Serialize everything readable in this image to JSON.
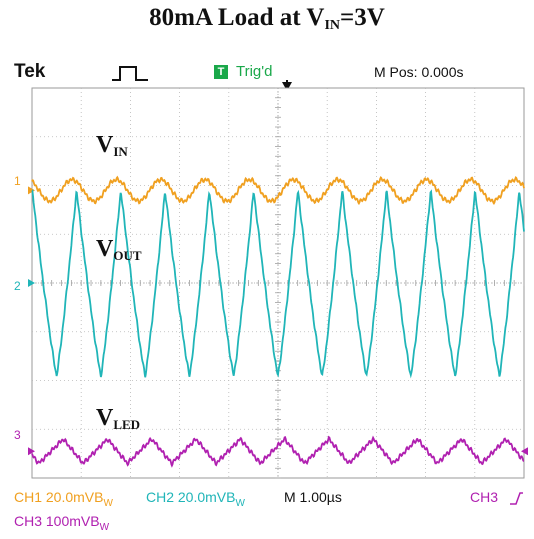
{
  "title": {
    "main": "80mA Load at V",
    "sub": "IN",
    "tail": "=3V"
  },
  "header": {
    "brand": "Tek",
    "trig_icon": "T",
    "trig_status": "Trig'd",
    "mpos": "M Pos: 0.000s"
  },
  "channel_markers": {
    "ch1": "1",
    "ch2": "2",
    "ch3": "3"
  },
  "traces": {
    "vin": {
      "main": "V",
      "sub": "IN"
    },
    "vout": {
      "main": "V",
      "sub": "OUT"
    },
    "vled": {
      "main": "V",
      "sub": "LED"
    }
  },
  "status": {
    "ch1": "CH1  20.0mVB",
    "ch1_sub": "W",
    "ch2": "CH2  20.0mVB",
    "ch2_sub": "W",
    "timebase": "M 1.00µs",
    "ch3_trigger": "CH3",
    "ch3": "CH3  100mVB",
    "ch3_sub": "W"
  },
  "colors": {
    "ch1": "#f0a020",
    "ch2": "#20b5b8",
    "ch3": "#b020b0",
    "trigger": "#1aa84a"
  },
  "chart_data": {
    "type": "line",
    "x": [
      0,
      0.05,
      0.1,
      0.15,
      0.2,
      0.25,
      0.3,
      0.35,
      0.4,
      0.45,
      0.5,
      0.55,
      0.6,
      0.65,
      0.7,
      0.75,
      0.8,
      0.85,
      0.9,
      0.95,
      1,
      1.05,
      1.1,
      1.15,
      1.2,
      1.25,
      1.3,
      1.35,
      1.4,
      1.45,
      1.5,
      1.55,
      1.6,
      1.65,
      1.7,
      1.75,
      1.8,
      1.85,
      1.9,
      1.95,
      2,
      2.05,
      2.1,
      2.15,
      2.2,
      2.25,
      2.3,
      2.35,
      2.4,
      2.45,
      2.5,
      2.55,
      2.6,
      2.65,
      2.7,
      2.75,
      2.8,
      2.85,
      2.9,
      2.95,
      3,
      3.05,
      3.1,
      3.15,
      3.2,
      3.25,
      3.3,
      3.35,
      3.4,
      3.45,
      3.5,
      3.55,
      3.6,
      3.65,
      3.7,
      3.75,
      3.8,
      3.85,
      3.9,
      3.95,
      4,
      4.05,
      4.1,
      4.15,
      4.2,
      4.25,
      4.3,
      4.35,
      4.4,
      4.45,
      4.5,
      4.55,
      4.6,
      4.65,
      4.7,
      4.75,
      4.8,
      4.85,
      4.9,
      4.95,
      5
    ],
    "x_unit": "µs",
    "xlim": [
      -5,
      5
    ],
    "period_us": 0.9,
    "ylim_div": [
      -4,
      4
    ],
    "grid": true,
    "series": [
      {
        "channel": "CH1",
        "offset_div": 1.9,
        "amplitude_div": 0.22,
        "shape": "triangle-rounded",
        "phase": 0.15
      },
      {
        "channel": "CH2",
        "offset_div": 0.0,
        "amplitude_div": 1.9,
        "shape": "sawtooth-sharp",
        "phase": 0.0
      },
      {
        "channel": "CH3",
        "offset_div": -3.45,
        "amplitude_div": 0.25,
        "shape": "triangle",
        "phase": 0.4
      }
    ]
  }
}
